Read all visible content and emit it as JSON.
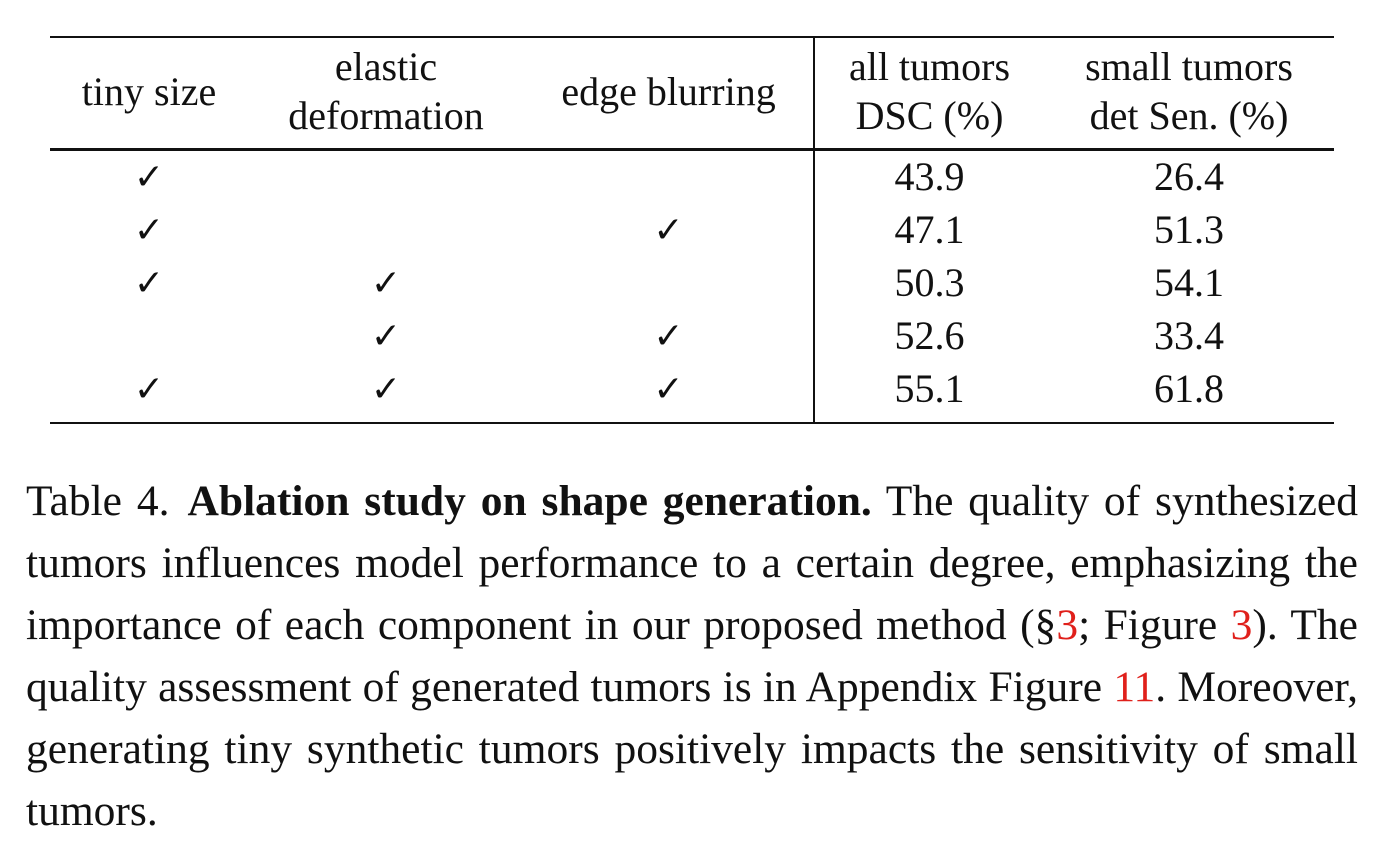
{
  "table": {
    "headers": {
      "tiny_size": [
        "tiny size"
      ],
      "elastic": [
        "elastic",
        "deformation"
      ],
      "edge": [
        "edge blurring"
      ],
      "all_tumors": [
        "all tumors",
        "DSC (%)"
      ],
      "small_tumors": [
        "small tumors",
        "det Sen. (%)"
      ]
    },
    "check_symbol": "✓",
    "rows": [
      {
        "tiny_size": "✓",
        "elastic": "",
        "edge": "",
        "dsc": "43.9",
        "sen": "26.4"
      },
      {
        "tiny_size": "✓",
        "elastic": "",
        "edge": "✓",
        "dsc": "47.1",
        "sen": "51.3"
      },
      {
        "tiny_size": "✓",
        "elastic": "✓",
        "edge": "",
        "dsc": "50.3",
        "sen": "54.1"
      },
      {
        "tiny_size": "",
        "elastic": "✓",
        "edge": "✓",
        "dsc": "52.6",
        "sen": "33.4"
      },
      {
        "tiny_size": "✓",
        "elastic": "✓",
        "edge": "✓",
        "dsc": "55.1",
        "sen": "61.8"
      }
    ]
  },
  "caption": {
    "label": "Table 4.",
    "title": "Ablation study on shape generation.",
    "text_1": "The quality of synthesized tumors influences model performance to a certain degree, emphasizing the importance of each component in our proposed method (§",
    "ref_section": "3",
    "text_2": "; Figure ",
    "ref_figure": "3",
    "text_3": "). The quality assessment of generated tumors is in Appendix Figure ",
    "ref_appendix": "11",
    "text_4": ". Moreover, generating tiny synthetic tumors positively impacts the sensitivity of small tumors."
  },
  "colors": {
    "text": "#111111",
    "reference_link": "#e0201b",
    "background": "#ffffff"
  }
}
